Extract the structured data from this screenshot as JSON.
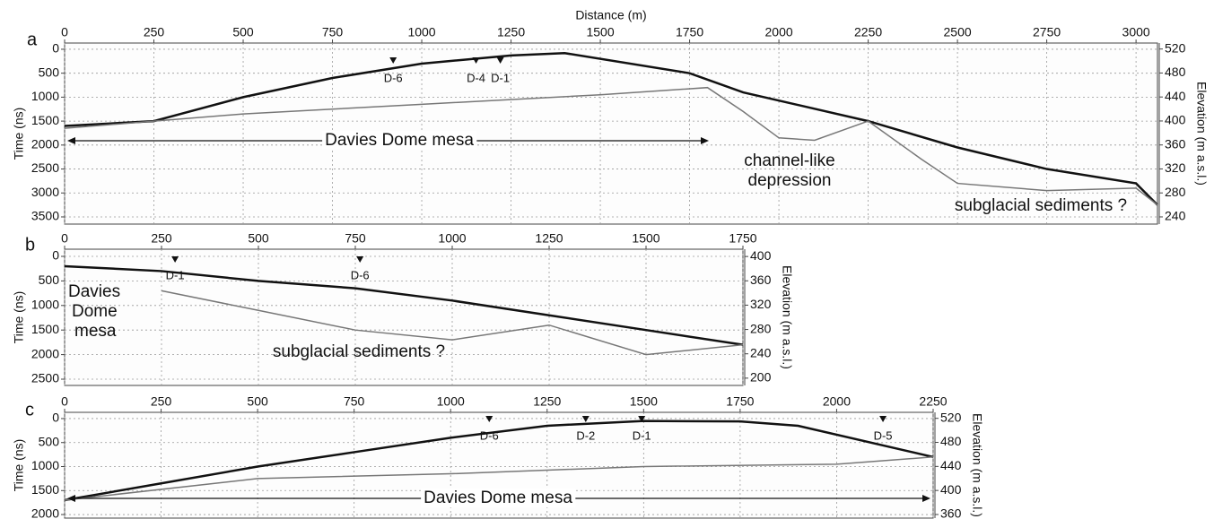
{
  "chart_data": [
    {
      "type": "radargram",
      "panel": "a",
      "xlabel": "Distance (m)",
      "ylabel": "Time (ns)",
      "y2label": "Elevation (m a.s.l.)",
      "xlim": [
        0,
        3060
      ],
      "xticks": [
        0,
        250,
        500,
        750,
        1000,
        1250,
        1500,
        1750,
        2000,
        2250,
        2500,
        2750,
        3000
      ],
      "ylim": [
        -130,
        3650
      ],
      "y_inverted": true,
      "yticks": [
        0,
        500,
        1000,
        1500,
        2000,
        2500,
        3000,
        3500
      ],
      "y2lim": [
        228,
        530
      ],
      "y2ticks": [
        520,
        480,
        440,
        400,
        360,
        320,
        280,
        240
      ],
      "grid": true,
      "series": [
        {
          "color": "#111111",
          "x": [
            0,
            250,
            500,
            750,
            1000,
            1250,
            1400,
            1750,
            1900,
            2250,
            2500,
            2750,
            3000,
            3060
          ],
          "values": [
            1600,
            1500,
            1000,
            600,
            300,
            130,
            80,
            500,
            900,
            1500,
            2050,
            2500,
            2800,
            3250
          ]
        },
        {
          "color": "#777777",
          "x": [
            0,
            500,
            1000,
            1500,
            1800,
            1900,
            2000,
            2100,
            2250,
            2400,
            2500,
            2750,
            3000,
            3060
          ],
          "values": [
            1650,
            1350,
            1150,
            950,
            800,
            1300,
            1850,
            1900,
            1500,
            2300,
            2800,
            2950,
            2900,
            3250
          ]
        }
      ],
      "markers": [
        {
          "label": "D-6",
          "x": 920
        },
        {
          "label": "D-4",
          "x": 1152
        },
        {
          "label": "D-1",
          "x": 1220
        }
      ],
      "annotations": [
        "Davies Dome mesa",
        "channel-like",
        "depression",
        "subglacial sediments ?"
      ]
    },
    {
      "type": "radargram",
      "panel": "b",
      "ylabel": "Time (ns)",
      "y2label": "Elevation (m a.s.l.)",
      "xlim": [
        0,
        1750
      ],
      "xticks": [
        0,
        250,
        500,
        750,
        1000,
        1250,
        1500,
        1750
      ],
      "ylim": [
        -146,
        2628
      ],
      "y_inverted": true,
      "yticks": [
        0,
        500,
        1000,
        1500,
        2000,
        2500
      ],
      "y2lim": [
        188,
        412
      ],
      "y2ticks": [
        400,
        360,
        320,
        280,
        240,
        200
      ],
      "grid": true,
      "series": [
        {
          "color": "#111111",
          "x": [
            0,
            250,
            500,
            750,
            1000,
            1250,
            1500,
            1750
          ],
          "values": [
            200,
            300,
            500,
            650,
            900,
            1200,
            1500,
            1800
          ]
        },
        {
          "color": "#777777",
          "x": [
            250,
            500,
            750,
            1000,
            1250,
            1500,
            1750
          ],
          "values": [
            700,
            1100,
            1500,
            1700,
            1400,
            2000,
            1800
          ]
        }
      ],
      "markers": [
        {
          "label": "D-1",
          "x": 285
        },
        {
          "label": "D-6",
          "x": 762
        }
      ],
      "annotations": [
        "Davies",
        "Dome",
        "mesa",
        "subglacial sediments ?"
      ]
    },
    {
      "type": "radargram",
      "panel": "c",
      "ylabel": "Time (ns)",
      "y2label": "Elevation (m a.s.l.)",
      "xlim": [
        0,
        2250
      ],
      "xticks": [
        0,
        250,
        500,
        750,
        1000,
        1250,
        1500,
        1750,
        2000,
        2250
      ],
      "ylim": [
        -130,
        2074
      ],
      "y_inverted": true,
      "yticks": [
        0,
        500,
        1000,
        1500,
        2000
      ],
      "y2lim": [
        354,
        530
      ],
      "y2ticks": [
        520,
        480,
        440,
        400,
        360
      ],
      "grid": true,
      "series": [
        {
          "color": "#111111",
          "x": [
            0,
            250,
            500,
            750,
            1000,
            1250,
            1500,
            1750,
            1900,
            2250
          ],
          "values": [
            1700,
            1350,
            1000,
            700,
            400,
            150,
            50,
            60,
            150,
            800
          ]
        },
        {
          "color": "#777777",
          "x": [
            0,
            500,
            1000,
            1500,
            2000,
            2250
          ],
          "values": [
            1700,
            1250,
            1150,
            1000,
            950,
            800
          ]
        }
      ],
      "markers": [
        {
          "label": "D-6",
          "x": 1100
        },
        {
          "label": "D-2",
          "x": 1350
        },
        {
          "label": "D-1",
          "x": 1495
        },
        {
          "label": "D-5",
          "x": 2120
        }
      ],
      "annotations": [
        "Davies Dome mesa"
      ]
    }
  ]
}
